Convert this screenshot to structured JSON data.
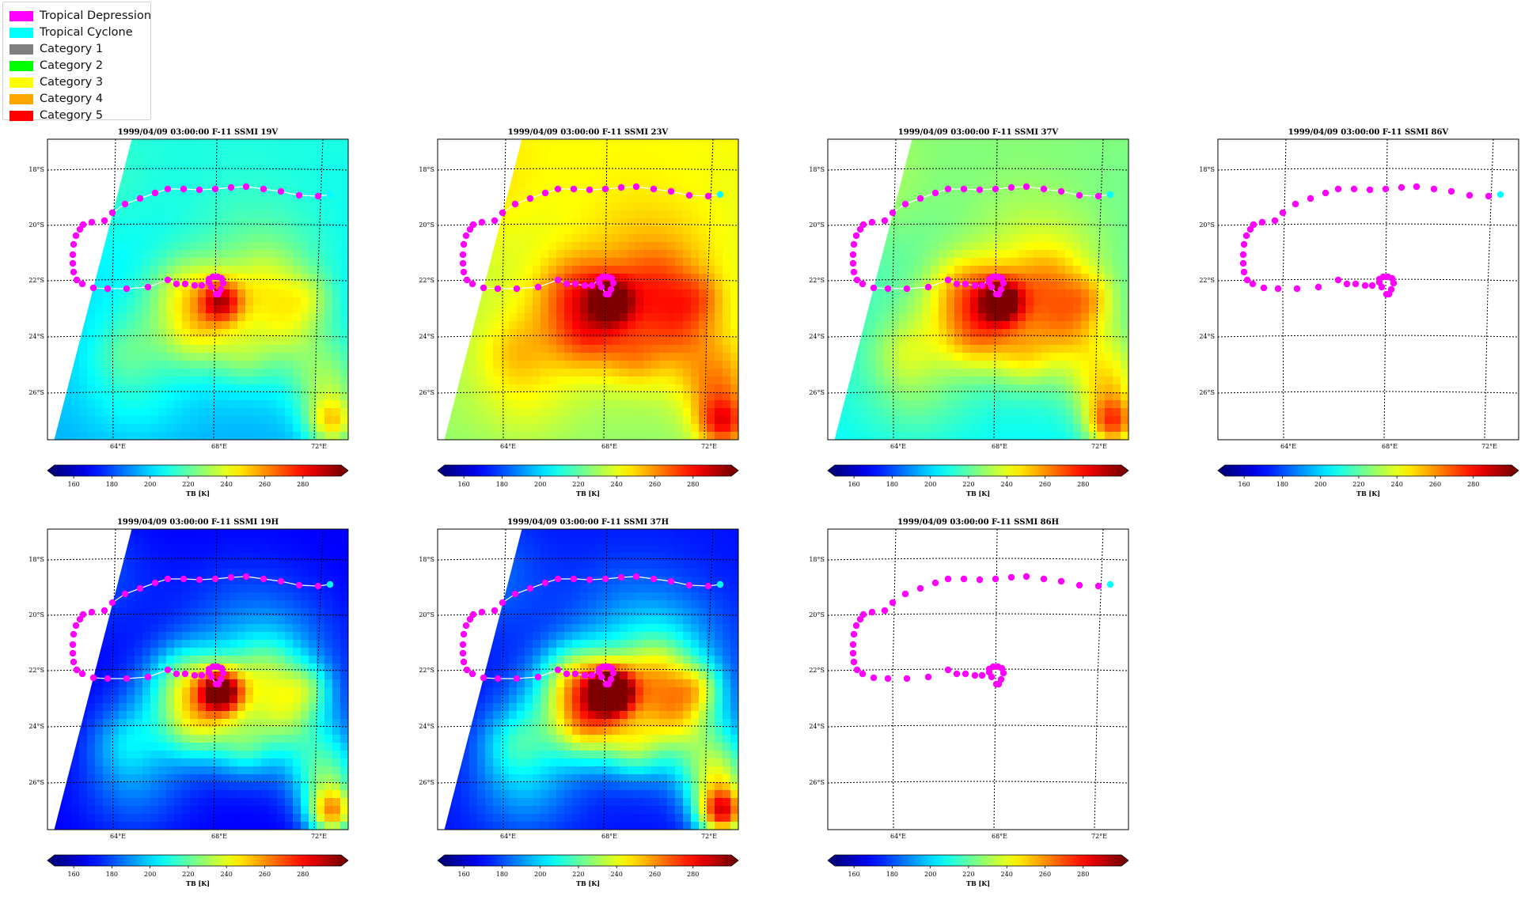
{
  "legend": [
    {
      "label": "Tropical Depression",
      "color": "#ff00ff"
    },
    {
      "label": "Tropical Cyclone",
      "color": "#00ffff"
    },
    {
      "label": "Category 1",
      "color": "#808080"
    },
    {
      "label": "Category 2",
      "color": "#00ff00"
    },
    {
      "label": "Category 3",
      "color": "#ffff00"
    },
    {
      "label": "Category 4",
      "color": "#ffa500"
    },
    {
      "label": "Category 5",
      "color": "#ff0000"
    }
  ],
  "track_colors": {
    "depression": "#ff00ff",
    "cyclone": "#00ffff",
    "line": "#ffffff"
  },
  "lat_labels": [
    "18°S",
    "20°S",
    "22°S",
    "24°S",
    "26°S"
  ],
  "lon_labels": [
    "64°E",
    "68°E",
    "72°E"
  ],
  "colorbar": {
    "ticks": [
      "160",
      "180",
      "200",
      "220",
      "240",
      "260",
      "280"
    ],
    "label": "TB [K]",
    "range": [
      150,
      300
    ],
    "cmap": "jet"
  },
  "panels": [
    {
      "title": "1999/04/09 03:00:00  F-11 SSMI 19V",
      "channel": "19V",
      "has_data": true
    },
    {
      "title": "1999/04/09 03:00:00  F-11 SSMI 23V",
      "channel": "23V",
      "has_data": true
    },
    {
      "title": "1999/04/09 03:00:00  F-11 SSMI 37V",
      "channel": "37V",
      "has_data": true
    },
    {
      "title": "1999/04/09 03:00:00  F-11 SSMI 86V",
      "channel": "86V",
      "has_data": false
    },
    {
      "title": "1999/04/09 03:00:00  F-11 SSMI 19H",
      "channel": "19H",
      "has_data": true
    },
    {
      "title": "1999/04/09 03:00:00  F-11 SSMI 37H",
      "channel": "37H",
      "has_data": true
    },
    {
      "title": "1999/04/09 03:00:00  F-11 SSMI 86H",
      "channel": "86H",
      "has_data": false
    }
  ]
}
